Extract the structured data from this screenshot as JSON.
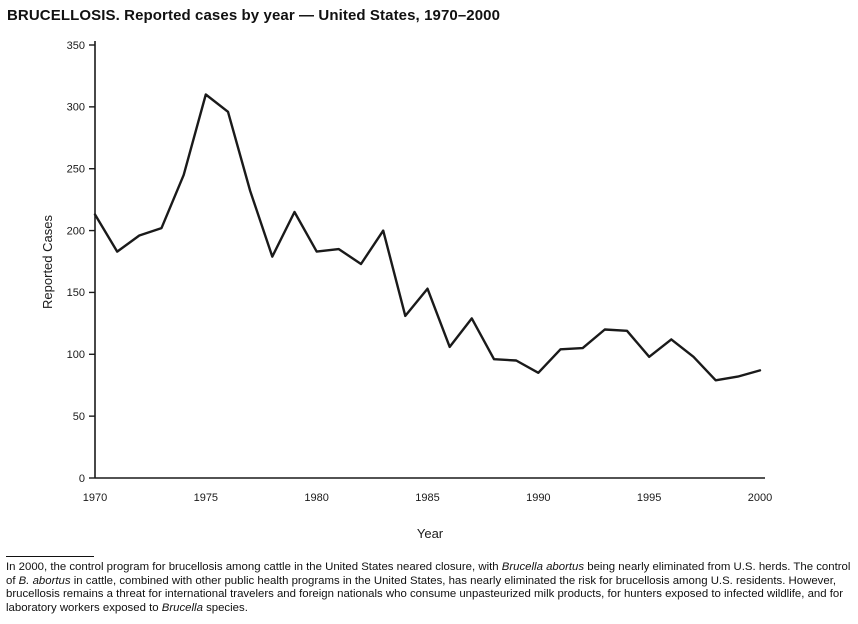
{
  "title": "BRUCELLOSIS. Reported cases by year — United States, 1970–2000",
  "chart_data": {
    "type": "line",
    "title": "BRUCELLOSIS. Reported cases by year — United States, 1970–2000",
    "xlabel": "Year",
    "ylabel": "Reported Cases",
    "xlim": [
      1970,
      2000
    ],
    "ylim": [
      0,
      350
    ],
    "xticks": [
      1970,
      1975,
      1980,
      1985,
      1990,
      1995,
      2000
    ],
    "yticks": [
      0,
      50,
      100,
      150,
      200,
      250,
      300,
      350
    ],
    "grid": false,
    "legend": "none",
    "line_color": "#1a1a1a",
    "x": [
      1970,
      1971,
      1972,
      1973,
      1974,
      1975,
      1976,
      1977,
      1978,
      1979,
      1980,
      1981,
      1982,
      1983,
      1984,
      1985,
      1986,
      1987,
      1988,
      1989,
      1990,
      1991,
      1992,
      1993,
      1994,
      1995,
      1996,
      1997,
      1998,
      1999,
      2000
    ],
    "values": [
      213,
      183,
      196,
      202,
      245,
      310,
      296,
      232,
      179,
      215,
      183,
      185,
      173,
      200,
      131,
      153,
      106,
      129,
      96,
      95,
      85,
      104,
      105,
      120,
      119,
      98,
      112,
      98,
      79,
      82,
      87
    ]
  },
  "footnote": {
    "segments": [
      {
        "text": "In 2000, the control program for brucellosis among cattle in the United States neared closure, with ",
        "italic": false
      },
      {
        "text": "Brucella abortus",
        "italic": true
      },
      {
        "text": " being nearly eliminated from U.S. herds. The control of ",
        "italic": false
      },
      {
        "text": "B. abortus",
        "italic": true
      },
      {
        "text": " in cattle, combined with other public health programs in the United States, has nearly eliminated the risk for brucellosis among U.S. residents. However, brucellosis remains a threat for international travelers and foreign nationals who consume unpasteurized milk products, for hunters exposed to infected wildlife, and for laboratory workers exposed to ",
        "italic": false
      },
      {
        "text": "Brucella",
        "italic": true
      },
      {
        "text": " species.",
        "italic": false
      }
    ]
  }
}
